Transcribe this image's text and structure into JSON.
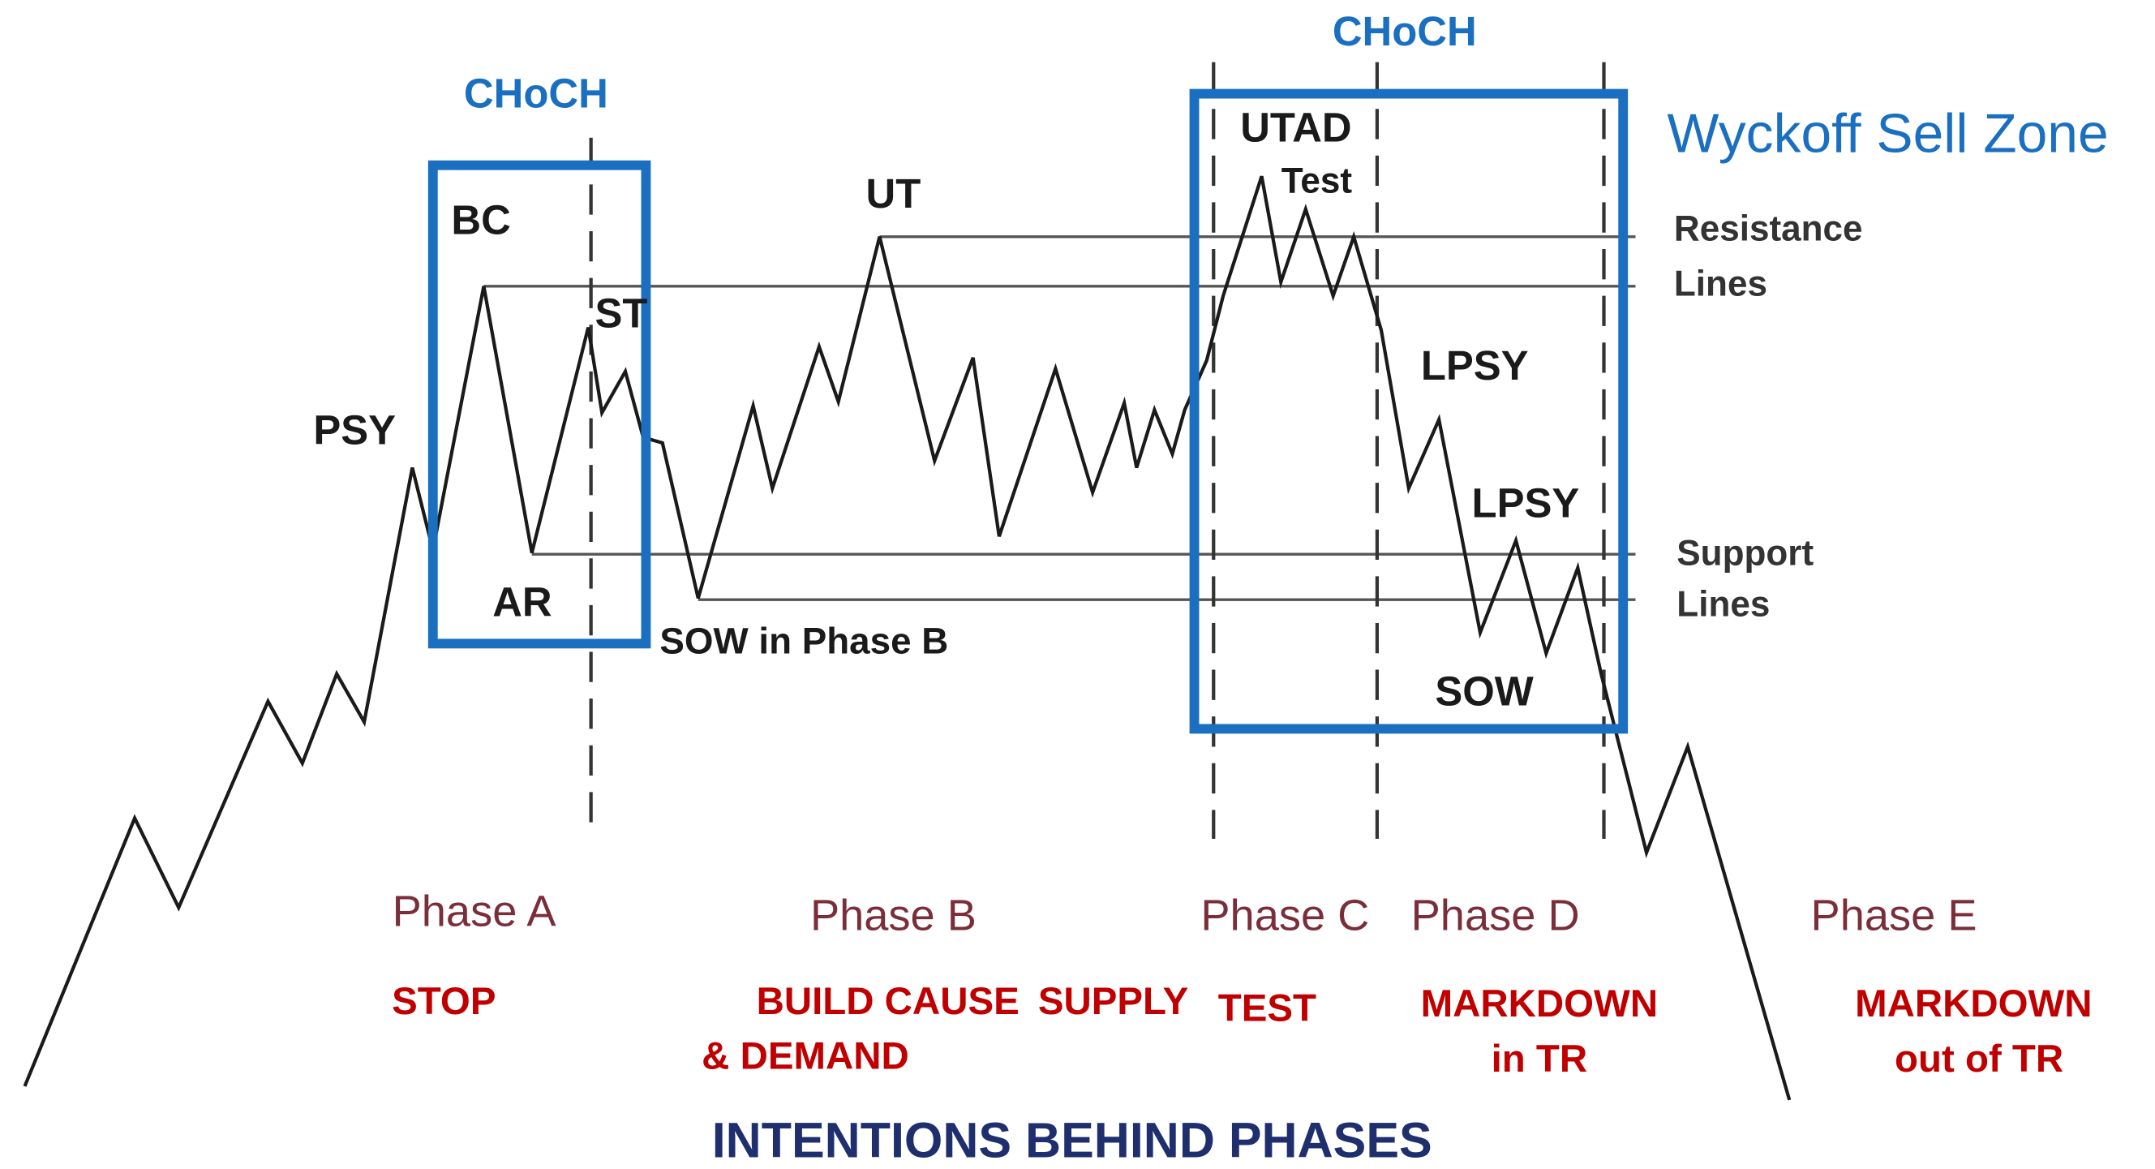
{
  "annotations": {
    "choch_left": "CHoCH",
    "choch_right": "CHoCH",
    "zone_title": "Wyckoff Sell Zone",
    "points": [
      "BC",
      "ST",
      "PSY",
      "AR",
      "SOW in Phase B",
      "UT",
      "UTAD",
      "Test",
      "LPSY",
      "LPSY",
      "SOW"
    ],
    "resistance": [
      "Resistance",
      "Lines"
    ],
    "support": [
      "Support",
      "Lines"
    ]
  },
  "phases": [
    "Phase A",
    "Phase B",
    "Phase C",
    "Phase D",
    "Phase E"
  ],
  "intentions": [
    [
      "STOP"
    ],
    [
      "BUILD CAUSE",
      "& DEMAND"
    ],
    [
      "SUPPLY"
    ],
    [
      "TEST"
    ],
    [
      "MARKDOWN",
      "in TR"
    ],
    [
      "MARKDOWN",
      "out of TR"
    ]
  ],
  "title": "INTENTIONS BEHIND PHASES"
}
